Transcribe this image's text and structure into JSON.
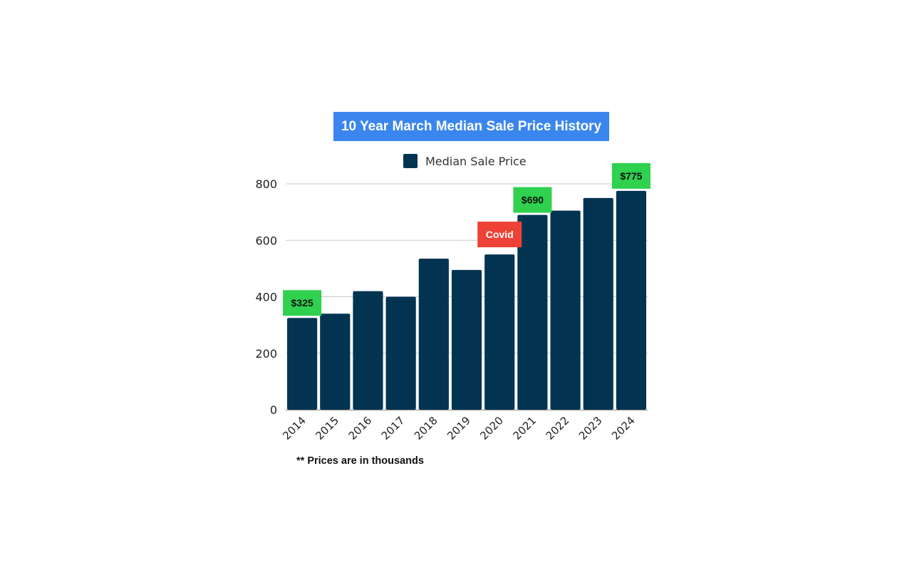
{
  "colors": {
    "bar": "#023452",
    "title_bg": "#3b86ee",
    "badge_green": "#2fd14f",
    "badge_red": "#ee4236",
    "grid": "#c8c8c8"
  },
  "footnote": "** Prices are in thousands",
  "chart_data": {
    "type": "bar",
    "title": "10 Year March Median Sale Price History",
    "xlabel": "",
    "ylabel": "",
    "categories": [
      "2014",
      "2015",
      "2016",
      "2017",
      "2018",
      "2019",
      "2020",
      "2021",
      "2022",
      "2023",
      "2024"
    ],
    "series": [
      {
        "name": "Median Sale Price",
        "values": [
          325,
          340,
          420,
          400,
          535,
          495,
          550,
          690,
          705,
          750,
          775
        ]
      }
    ],
    "ylim": [
      0,
      800
    ],
    "yticks": [
      0,
      200,
      400,
      600,
      800
    ],
    "grid": true,
    "legend": "top-center",
    "annotations": [
      {
        "category": "2014",
        "text": "$325",
        "style": "green"
      },
      {
        "category": "2020",
        "text": "Covid",
        "style": "red"
      },
      {
        "category": "2021",
        "text": "$690",
        "style": "green"
      },
      {
        "category": "2024",
        "text": "$775",
        "style": "green"
      }
    ]
  }
}
